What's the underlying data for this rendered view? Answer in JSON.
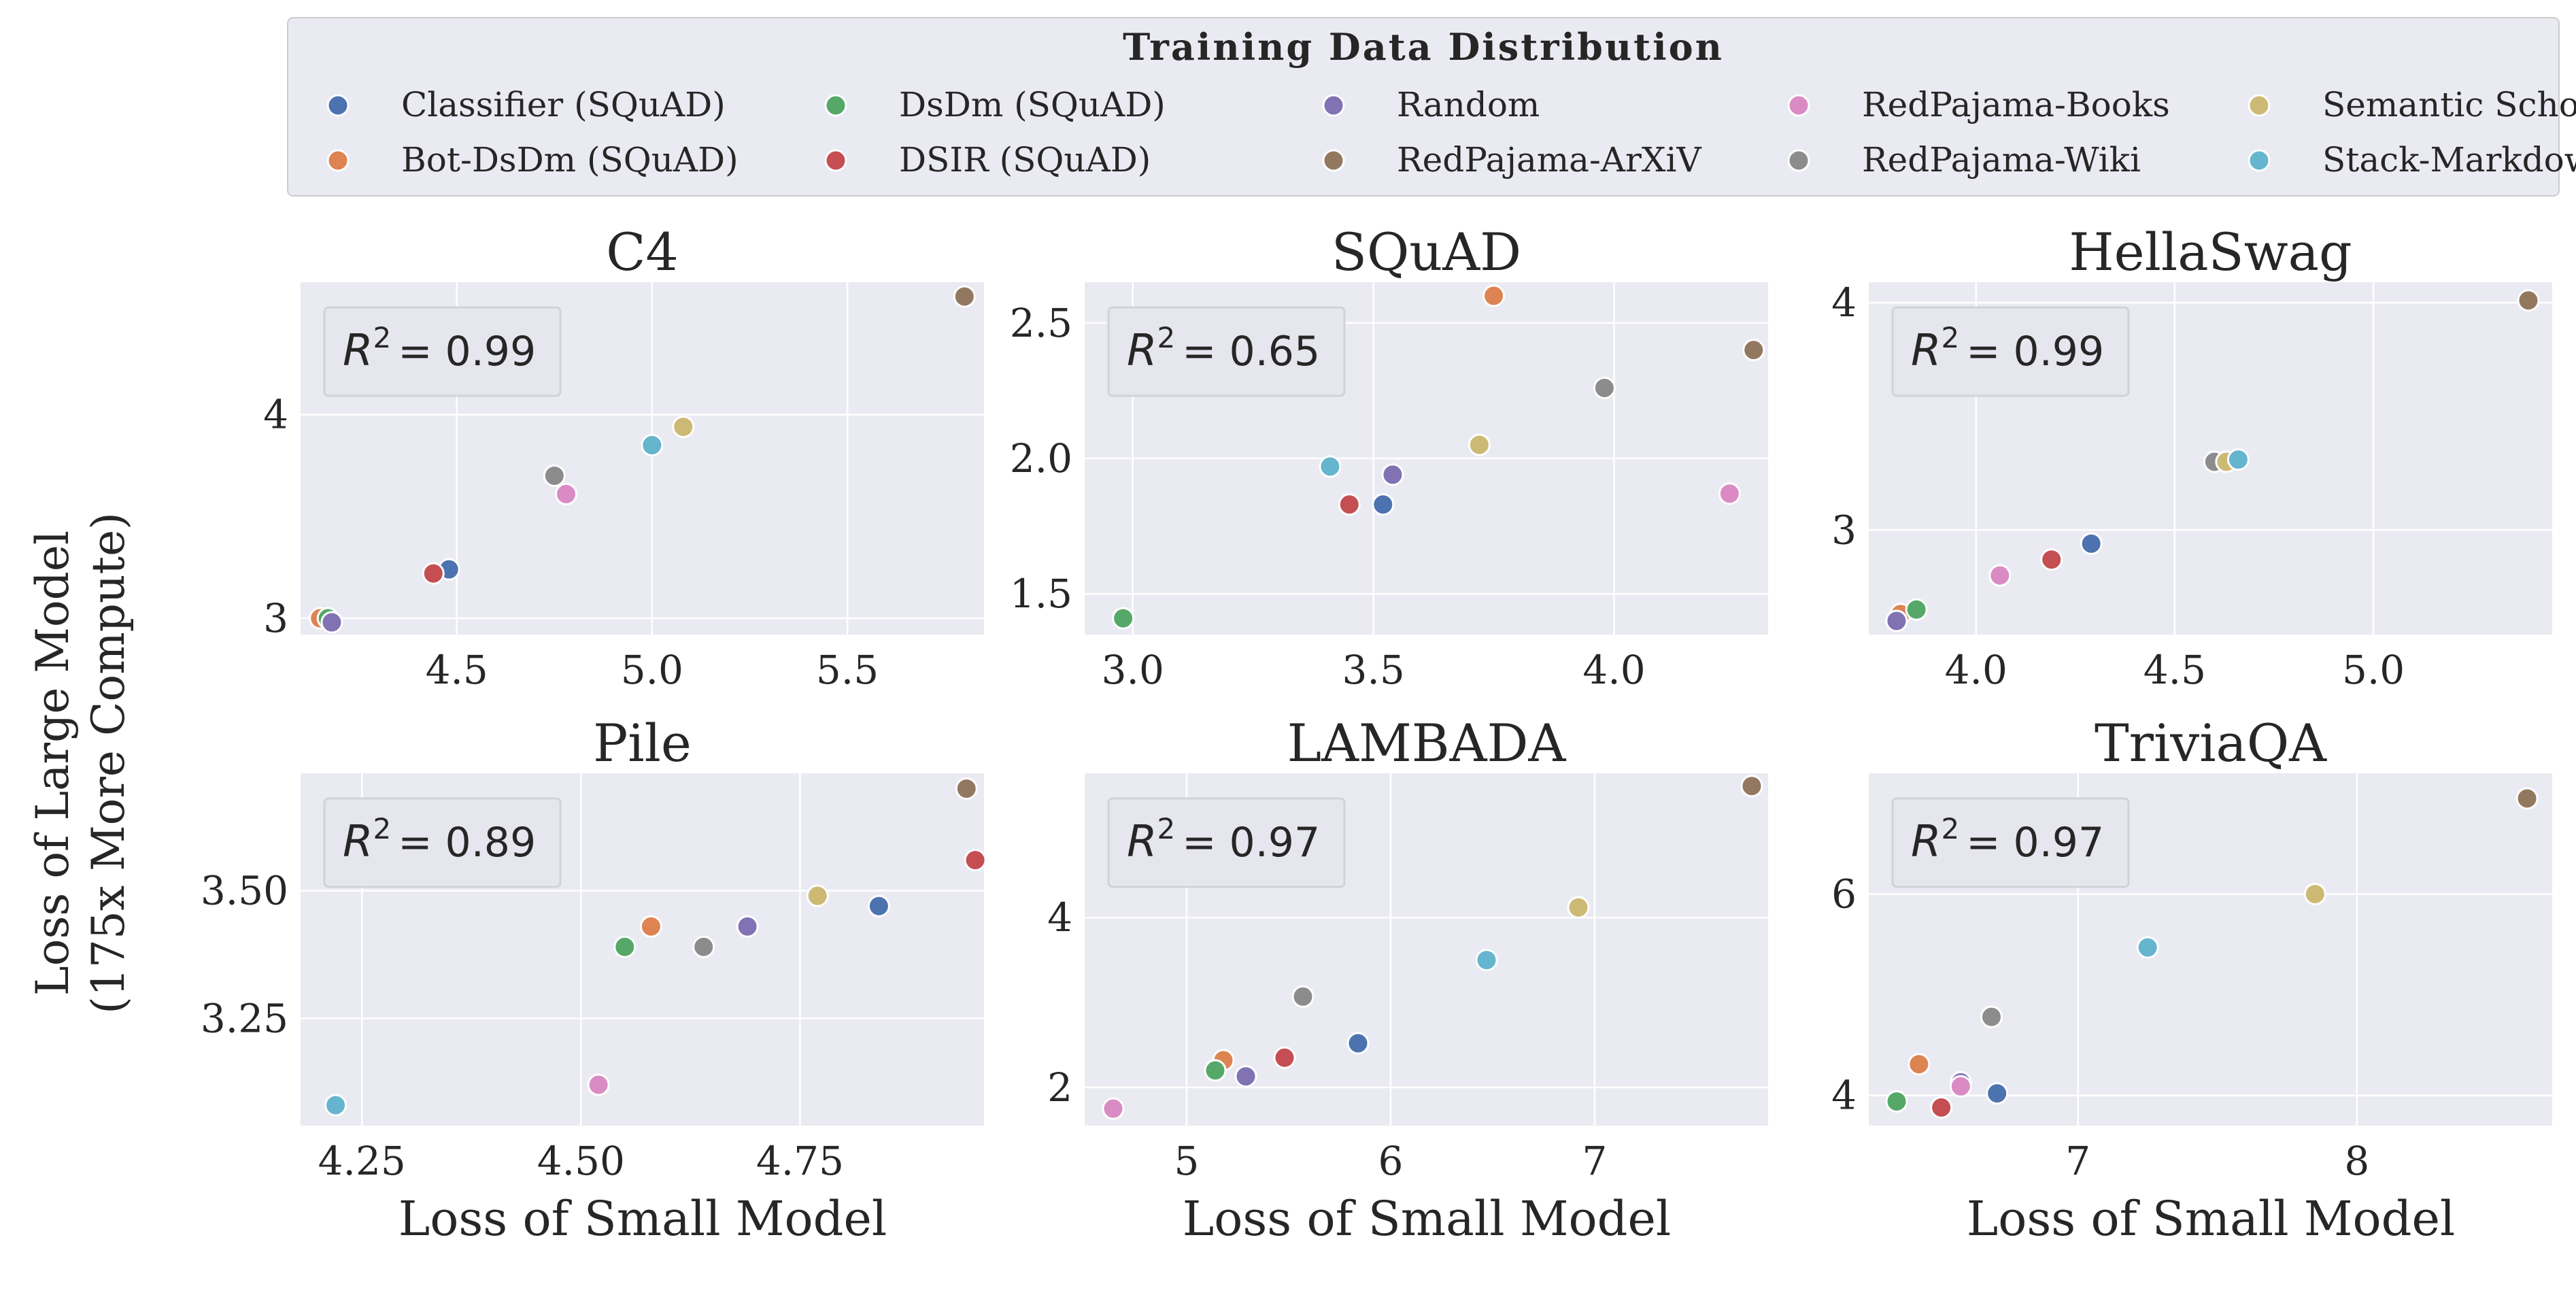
{
  "figure": {
    "ylabel_line1": "Loss of Large Model",
    "ylabel_line2": "(175x More Compute)",
    "xlabel": "Loss of Small Model"
  },
  "legend": {
    "title": "Training Data Distribution",
    "placement": "top",
    "entries": [
      {
        "name": "Classifier (SQuAD)",
        "color": "#4c72b0"
      },
      {
        "name": "Bot-DsDm (SQuAD)",
        "color": "#dd8452"
      },
      {
        "name": "DsDm (SQuAD)",
        "color": "#55a868"
      },
      {
        "name": "DSIR (SQuAD)",
        "color": "#c44e52"
      },
      {
        "name": "Random",
        "color": "#8172b3"
      },
      {
        "name": "RedPajama-ArXiV",
        "color": "#937860"
      },
      {
        "name": "RedPajama-Books",
        "color": "#da8bc3"
      },
      {
        "name": "RedPajama-Wiki",
        "color": "#8c8c8c"
      },
      {
        "name": "Semantic Scholar",
        "color": "#ccb974"
      },
      {
        "name": "Stack-Markdown",
        "color": "#64b5cd"
      }
    ]
  },
  "chart_data": [
    {
      "type": "scatter",
      "title": "C4",
      "r2_label": "= 0.99",
      "xlim": [
        4.1,
        5.85
      ],
      "ylim": [
        2.92,
        4.65
      ],
      "xticks": [
        4.5,
        5.0,
        5.5
      ],
      "yticks": [
        3,
        4
      ],
      "xtick_labels": [
        "4.5",
        "5.0",
        "5.5"
      ],
      "ytick_labels": [
        "3",
        "4"
      ],
      "points": [
        {
          "series": "Classifier (SQuAD)",
          "x": 4.48,
          "y": 3.24
        },
        {
          "series": "Bot-DsDm (SQuAD)",
          "x": 4.15,
          "y": 3.0
        },
        {
          "series": "DsDm (SQuAD)",
          "x": 4.17,
          "y": 3.0
        },
        {
          "series": "DSIR (SQuAD)",
          "x": 4.44,
          "y": 3.22
        },
        {
          "series": "Random",
          "x": 4.18,
          "y": 2.98
        },
        {
          "series": "RedPajama-ArXiV",
          "x": 5.8,
          "y": 4.58
        },
        {
          "series": "RedPajama-Books",
          "x": 4.78,
          "y": 3.61
        },
        {
          "series": "RedPajama-Wiki",
          "x": 4.75,
          "y": 3.7
        },
        {
          "series": "Semantic Scholar",
          "x": 5.08,
          "y": 3.94
        },
        {
          "series": "Stack-Markdown",
          "x": 5.0,
          "y": 3.85
        }
      ]
    },
    {
      "type": "scatter",
      "title": "SQuAD",
      "r2_label": "= 0.65",
      "xlim": [
        2.9,
        4.32
      ],
      "ylim": [
        1.35,
        2.65
      ],
      "xticks": [
        3.0,
        3.5,
        4.0
      ],
      "yticks": [
        1.5,
        2.0,
        2.5
      ],
      "xtick_labels": [
        "3.0",
        "3.5",
        "4.0"
      ],
      "ytick_labels": [
        "1.5",
        "2.0",
        "2.5"
      ],
      "points": [
        {
          "series": "Classifier (SQuAD)",
          "x": 3.52,
          "y": 1.83
        },
        {
          "series": "Bot-DsDm (SQuAD)",
          "x": 3.75,
          "y": 2.6
        },
        {
          "series": "DsDm (SQuAD)",
          "x": 2.98,
          "y": 1.41
        },
        {
          "series": "DSIR (SQuAD)",
          "x": 3.45,
          "y": 1.83
        },
        {
          "series": "Random",
          "x": 3.54,
          "y": 1.94
        },
        {
          "series": "RedPajama-ArXiV",
          "x": 4.29,
          "y": 2.4
        },
        {
          "series": "RedPajama-Books",
          "x": 4.24,
          "y": 1.87
        },
        {
          "series": "RedPajama-Wiki",
          "x": 3.98,
          "y": 2.26
        },
        {
          "series": "Semantic Scholar",
          "x": 3.72,
          "y": 2.05
        },
        {
          "series": "Stack-Markdown",
          "x": 3.41,
          "y": 1.97
        }
      ]
    },
    {
      "type": "scatter",
      "title": "HellaSwag",
      "r2_label": "= 0.99",
      "xlim": [
        3.73,
        5.45
      ],
      "ylim": [
        2.54,
        4.09
      ],
      "xticks": [
        4.0,
        4.5,
        5.0
      ],
      "yticks": [
        3,
        4
      ],
      "xtick_labels": [
        "4.0",
        "4.5",
        "5.0"
      ],
      "ytick_labels": [
        "3",
        "4"
      ],
      "points": [
        {
          "series": "Classifier (SQuAD)",
          "x": 4.29,
          "y": 2.94
        },
        {
          "series": "Bot-DsDm (SQuAD)",
          "x": 3.81,
          "y": 2.63
        },
        {
          "series": "DsDm (SQuAD)",
          "x": 3.85,
          "y": 2.65
        },
        {
          "series": "DSIR (SQuAD)",
          "x": 4.19,
          "y": 2.87
        },
        {
          "series": "Random",
          "x": 3.8,
          "y": 2.6
        },
        {
          "series": "RedPajama-ArXiV",
          "x": 5.39,
          "y": 4.01
        },
        {
          "series": "RedPajama-Books",
          "x": 4.06,
          "y": 2.8
        },
        {
          "series": "RedPajama-Wiki",
          "x": 4.6,
          "y": 3.3
        },
        {
          "series": "Semantic Scholar",
          "x": 4.63,
          "y": 3.3
        },
        {
          "series": "Stack-Markdown",
          "x": 4.66,
          "y": 3.31
        }
      ]
    },
    {
      "type": "scatter",
      "title": "Pile",
      "r2_label": "= 0.89",
      "xlim": [
        4.18,
        4.96
      ],
      "ylim": [
        3.04,
        3.73
      ],
      "xticks": [
        4.25,
        4.5,
        4.75
      ],
      "yticks": [
        3.25,
        3.5
      ],
      "xtick_labels": [
        "4.25",
        "4.50",
        "4.75"
      ],
      "ytick_labels": [
        "3.25",
        "3.50"
      ],
      "points": [
        {
          "series": "Classifier (SQuAD)",
          "x": 4.84,
          "y": 3.47
        },
        {
          "series": "Bot-DsDm (SQuAD)",
          "x": 4.58,
          "y": 3.43
        },
        {
          "series": "DsDm (SQuAD)",
          "x": 4.55,
          "y": 3.39
        },
        {
          "series": "DSIR (SQuAD)",
          "x": 4.95,
          "y": 3.56
        },
        {
          "series": "Random",
          "x": 4.69,
          "y": 3.43
        },
        {
          "series": "RedPajama-ArXiV",
          "x": 4.94,
          "y": 3.7
        },
        {
          "series": "RedPajama-Books",
          "x": 4.52,
          "y": 3.12
        },
        {
          "series": "RedPajama-Wiki",
          "x": 4.64,
          "y": 3.39
        },
        {
          "series": "Semantic Scholar",
          "x": 4.77,
          "y": 3.49
        },
        {
          "series": "Stack-Markdown",
          "x": 4.22,
          "y": 3.08
        }
      ]
    },
    {
      "type": "scatter",
      "title": "LAMBADA",
      "r2_label": "= 0.97",
      "xlim": [
        4.5,
        7.85
      ],
      "ylim": [
        1.55,
        5.7
      ],
      "xticks": [
        5,
        6,
        7
      ],
      "yticks": [
        2,
        4
      ],
      "xtick_labels": [
        "5",
        "6",
        "7"
      ],
      "ytick_labels": [
        "2",
        "4"
      ],
      "points": [
        {
          "series": "Classifier (SQuAD)",
          "x": 5.84,
          "y": 2.52
        },
        {
          "series": "Bot-DsDm (SQuAD)",
          "x": 5.18,
          "y": 2.32
        },
        {
          "series": "DsDm (SQuAD)",
          "x": 5.14,
          "y": 2.2
        },
        {
          "series": "DSIR (SQuAD)",
          "x": 5.48,
          "y": 2.35
        },
        {
          "series": "Random",
          "x": 5.29,
          "y": 2.13
        },
        {
          "series": "RedPajama-ArXiV",
          "x": 7.77,
          "y": 5.55
        },
        {
          "series": "RedPajama-Books",
          "x": 4.64,
          "y": 1.75
        },
        {
          "series": "RedPajama-Wiki",
          "x": 5.57,
          "y": 3.07
        },
        {
          "series": "Semantic Scholar",
          "x": 6.92,
          "y": 4.12
        },
        {
          "series": "Stack-Markdown",
          "x": 6.47,
          "y": 3.5
        }
      ]
    },
    {
      "type": "scatter",
      "title": "TriviaQA",
      "r2_label": "= 0.97",
      "xlim": [
        6.25,
        8.7
      ],
      "ylim": [
        3.7,
        7.2
      ],
      "xticks": [
        7,
        8
      ],
      "yticks": [
        4,
        6
      ],
      "xtick_labels": [
        "7",
        "8"
      ],
      "ytick_labels": [
        "4",
        "6"
      ],
      "points": [
        {
          "series": "Classifier (SQuAD)",
          "x": 6.71,
          "y": 4.02
        },
        {
          "series": "Bot-DsDm (SQuAD)",
          "x": 6.43,
          "y": 4.31
        },
        {
          "series": "DsDm (SQuAD)",
          "x": 6.35,
          "y": 3.94
        },
        {
          "series": "DSIR (SQuAD)",
          "x": 6.51,
          "y": 3.88
        },
        {
          "series": "Random",
          "x": 6.58,
          "y": 4.13
        },
        {
          "series": "RedPajama-ArXiV",
          "x": 8.61,
          "y": 6.95
        },
        {
          "series": "RedPajama-Books",
          "x": 6.58,
          "y": 4.09
        },
        {
          "series": "RedPajama-Wiki",
          "x": 6.69,
          "y": 4.78
        },
        {
          "series": "Semantic Scholar",
          "x": 7.85,
          "y": 6.0
        },
        {
          "series": "Stack-Markdown",
          "x": 7.25,
          "y": 5.47
        }
      ]
    }
  ]
}
